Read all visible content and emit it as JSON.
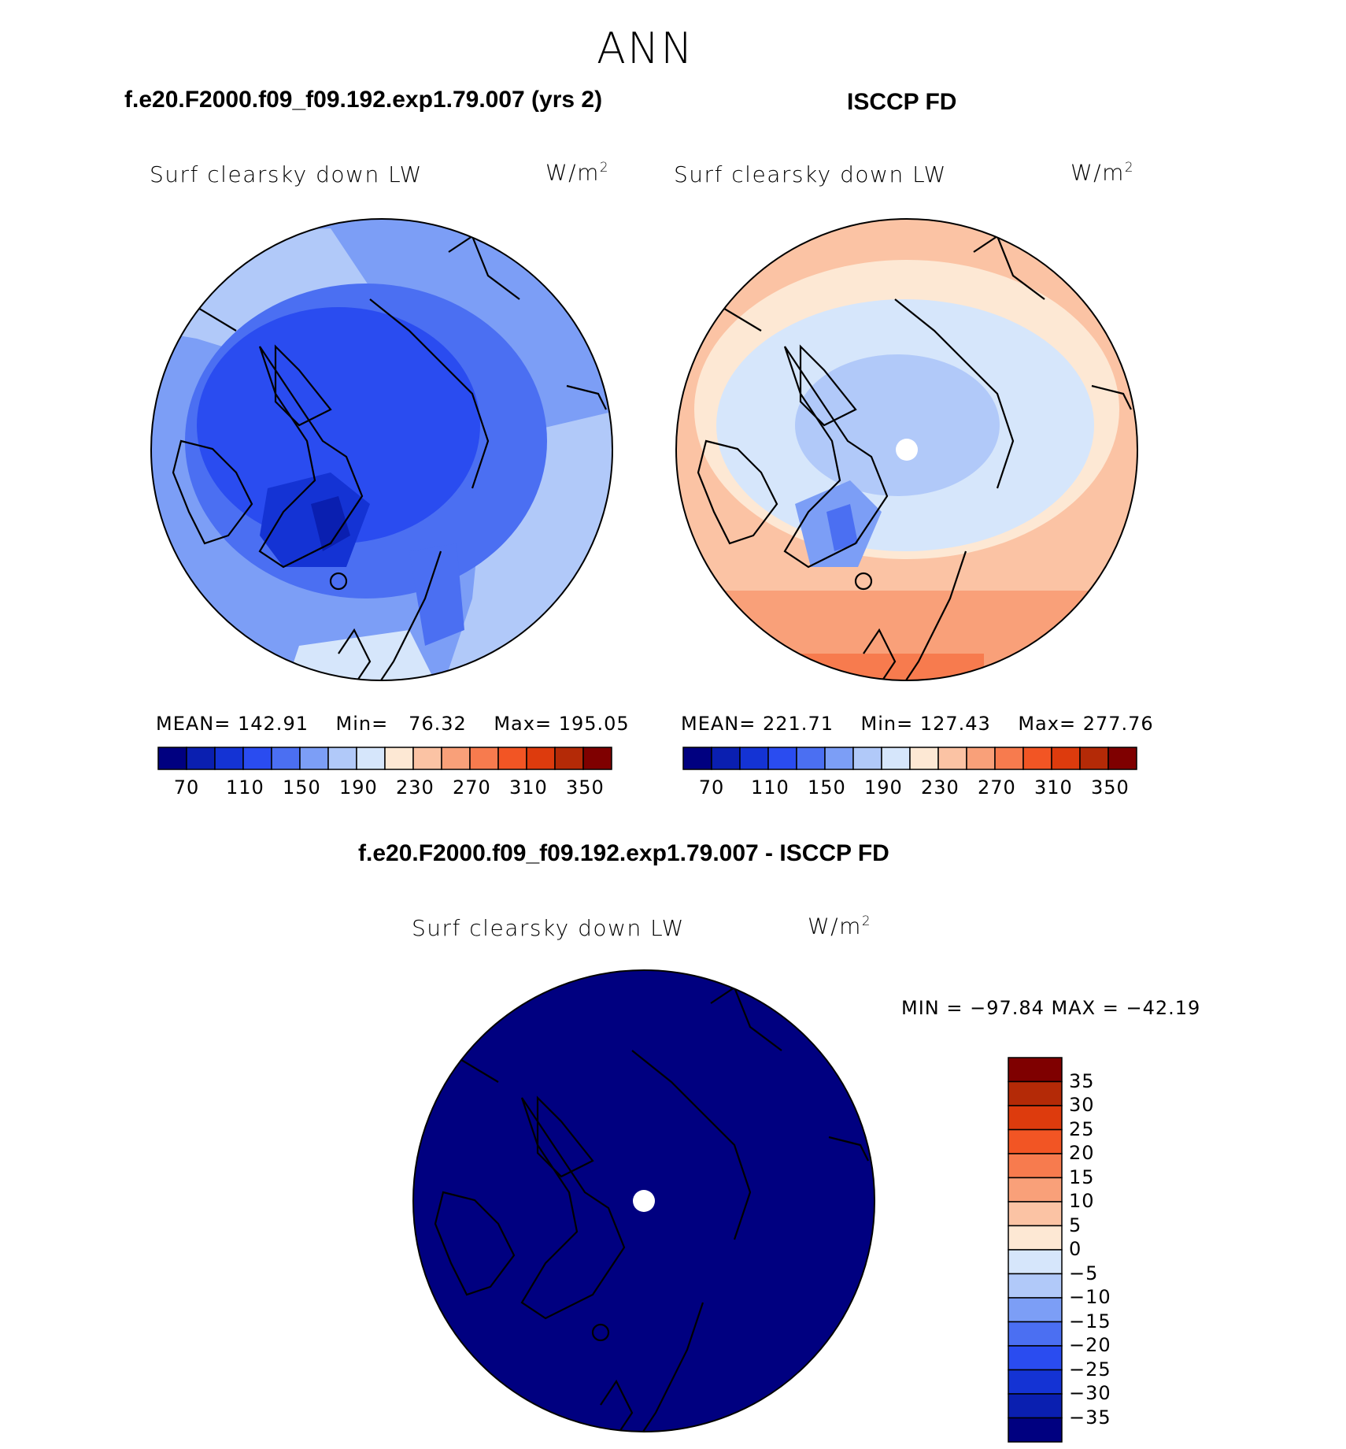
{
  "page_title": "ANN",
  "panels": [
    {
      "title": "f.e20.F2000.f09_f09.192.exp1.79.007 (yrs 2)",
      "variable": "Surf clearsky down LW",
      "units": "W/m",
      "units_sup": "2",
      "stats": {
        "mean_label": "MEAN=",
        "mean": "142.91",
        "min_label": "Min=",
        "min": "76.32",
        "max_label": "Max=",
        "max": "195.05"
      },
      "palette_style": "model"
    },
    {
      "title": "ISCCP FD",
      "variable": "Surf clearsky down LW",
      "units": "W/m",
      "units_sup": "2",
      "stats": {
        "mean_label": "MEAN=",
        "mean": "221.71",
        "min_label": "Min=",
        "min": "127.43",
        "max_label": "Max=",
        "max": "277.76"
      },
      "palette_style": "obs"
    }
  ],
  "colorbar_h": {
    "colors": [
      "#000080",
      "#0a1fb0",
      "#1433d4",
      "#2a4cf0",
      "#4b6ff2",
      "#7c9ef6",
      "#b1c9f9",
      "#d6e6fb",
      "#fde8d4",
      "#fbc3a4",
      "#f9a079",
      "#f77b4e",
      "#f25524",
      "#dd3b0d",
      "#b42a07",
      "#7f0000"
    ],
    "labels": [
      "70",
      "110",
      "150",
      "190",
      "230",
      "270",
      "310",
      "350"
    ]
  },
  "diff": {
    "title": "f.e20.F2000.f09_f09.192.exp1.79.007 - ISCCP FD",
    "variable": "Surf clearsky down LW",
    "units": "W/m",
    "units_sup": "2",
    "range_text": "MIN = −97.84 MAX = −42.19",
    "fill_color": "#000080"
  },
  "colorbar_v": {
    "colors": [
      "#7f0000",
      "#b42a07",
      "#dd3b0d",
      "#f25524",
      "#f77b4e",
      "#f9a079",
      "#fbc3a4",
      "#fde8d4",
      "#d6e6fb",
      "#b1c9f9",
      "#7c9ef6",
      "#4b6ff2",
      "#2a4cf0",
      "#1433d4",
      "#0a1fb0",
      "#000080"
    ],
    "labels": [
      "35",
      "30",
      "25",
      "20",
      "15",
      "10",
      "5",
      "0",
      "−5",
      "−10",
      "−15",
      "−20",
      "−25",
      "−30",
      "−35"
    ]
  }
}
